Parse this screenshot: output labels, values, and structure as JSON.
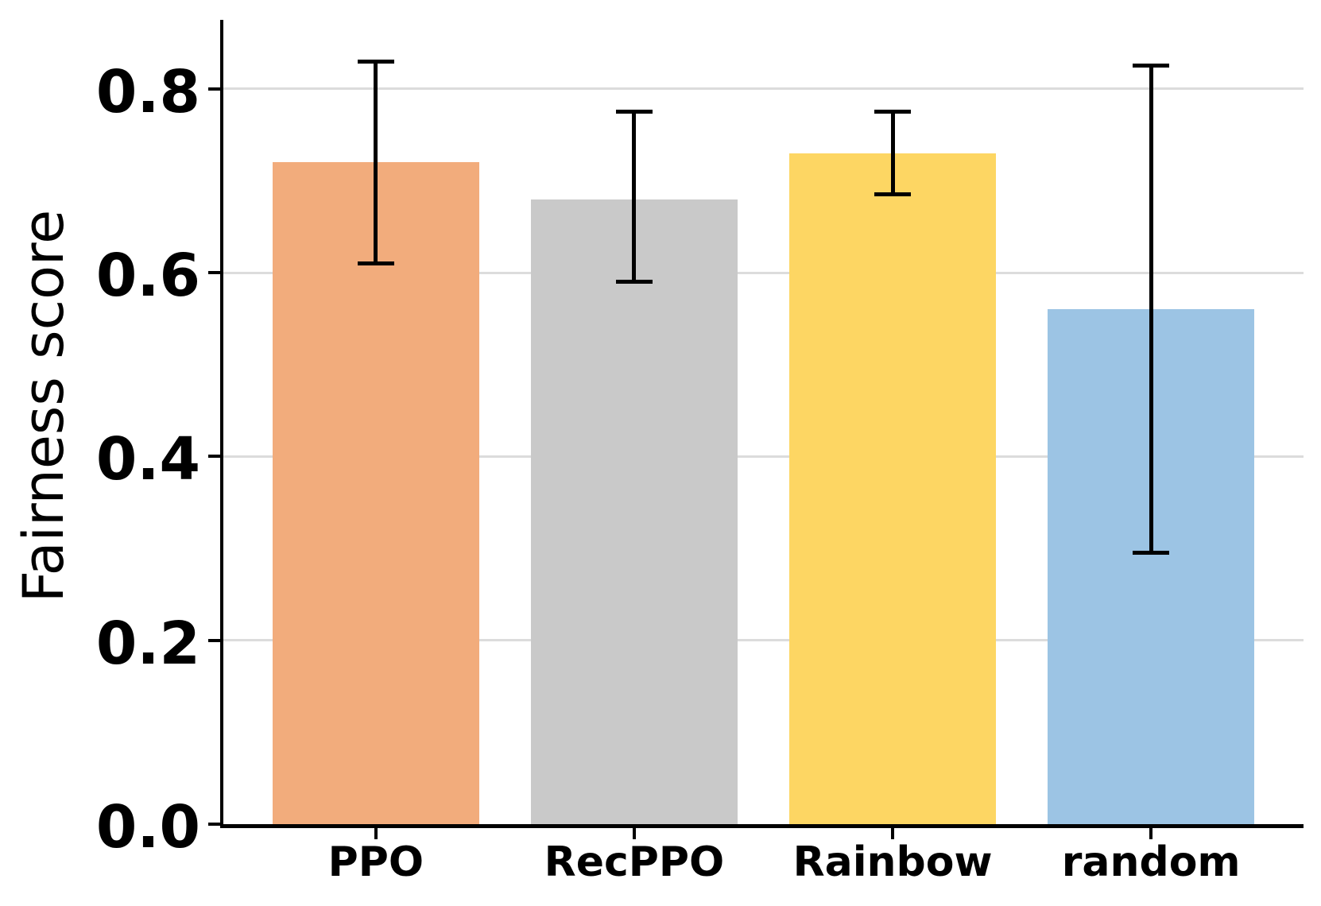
{
  "figure": {
    "background": "#ffffff"
  },
  "chart_data": {
    "type": "bar",
    "title": "",
    "xlabel": "",
    "ylabel": "Fairness score",
    "categories": [
      "PPO",
      "RecPPO",
      "Rainbow",
      "random"
    ],
    "values": [
      0.72,
      0.68,
      0.73,
      0.56
    ],
    "error_low": [
      0.61,
      0.59,
      0.685,
      0.295
    ],
    "error_high": [
      0.83,
      0.775,
      0.775,
      0.825
    ],
    "bar_colors": [
      "#F2AC7C",
      "#C9C9C9",
      "#FDD663",
      "#9CC4E4"
    ],
    "error_color": "#000000",
    "yticks": [
      0.0,
      0.2,
      0.4,
      0.6,
      0.8
    ],
    "ytick_labels": [
      "0.0",
      "0.2",
      "0.4",
      "0.6",
      "0.8"
    ],
    "ylim": [
      0,
      0.875
    ],
    "xlim": [
      -0.59,
      3.59
    ],
    "bar_width_units": 0.8,
    "grid": "horizontal",
    "grid_color": "#DCDCDC",
    "legend": "none"
  }
}
